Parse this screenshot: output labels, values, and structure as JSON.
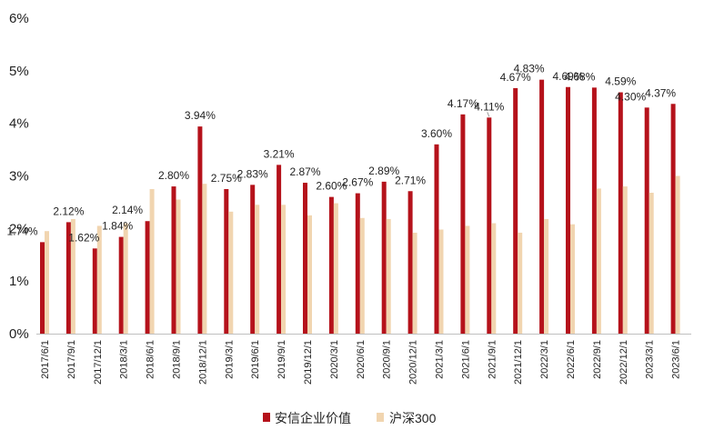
{
  "chart_data": {
    "type": "bar",
    "categories": [
      "2017/6/1",
      "2017/9/1",
      "2017/12/1",
      "2018/3/1",
      "2018/6/1",
      "2018/9/1",
      "2018/12/1",
      "2019/3/1",
      "2019/6/1",
      "2019/9/1",
      "2019/12/1",
      "2020/3/1",
      "2020/6/1",
      "2020/9/1",
      "2020/12/1",
      "2021/3/1",
      "2021/6/1",
      "2021/9/1",
      "2021/12/1",
      "2022/3/1",
      "2022/6/1",
      "2022/9/1",
      "2022/12/1",
      "2023/3/1",
      "2023/6/1"
    ],
    "series": [
      {
        "name": "安信企业价值",
        "color": "#b5121b",
        "values": [
          1.74,
          2.12,
          1.62,
          1.84,
          2.14,
          2.8,
          3.94,
          2.75,
          2.83,
          3.21,
          2.87,
          2.6,
          2.67,
          2.89,
          2.71,
          3.6,
          4.17,
          4.11,
          4.67,
          4.83,
          4.69,
          4.68,
          4.59,
          4.3,
          4.37
        ],
        "data_labels": [
          "1.74%",
          "2.12%",
          "1.62%",
          "1.84%",
          "2.14%",
          "2.80%",
          "3.94%",
          "2.75%",
          "2.83%",
          "3.21%",
          "2.87%",
          "2.60%",
          "2.67%",
          "2.89%",
          "2.71%",
          "3.60%",
          "4.17%",
          "4.11%",
          "4.67%",
          "4.83%",
          "4.69%",
          "4.68%",
          "4.59%",
          "4.30%",
          "4.37%"
        ]
      },
      {
        "name": "沪深300",
        "color": "#f1d5b0",
        "values": [
          1.95,
          2.18,
          2.05,
          2.1,
          2.75,
          2.55,
          2.85,
          2.32,
          2.45,
          2.45,
          2.25,
          2.48,
          2.2,
          2.18,
          1.92,
          1.98,
          2.05,
          2.1,
          1.92,
          2.18,
          2.08,
          2.76,
          2.8,
          2.68,
          3.0
        ]
      }
    ],
    "yticks": [
      "0%",
      "1%",
      "2%",
      "3%",
      "4%",
      "5%",
      "6%"
    ],
    "ylim": [
      0,
      6
    ],
    "grid": false,
    "legend_position": "bottom"
  }
}
